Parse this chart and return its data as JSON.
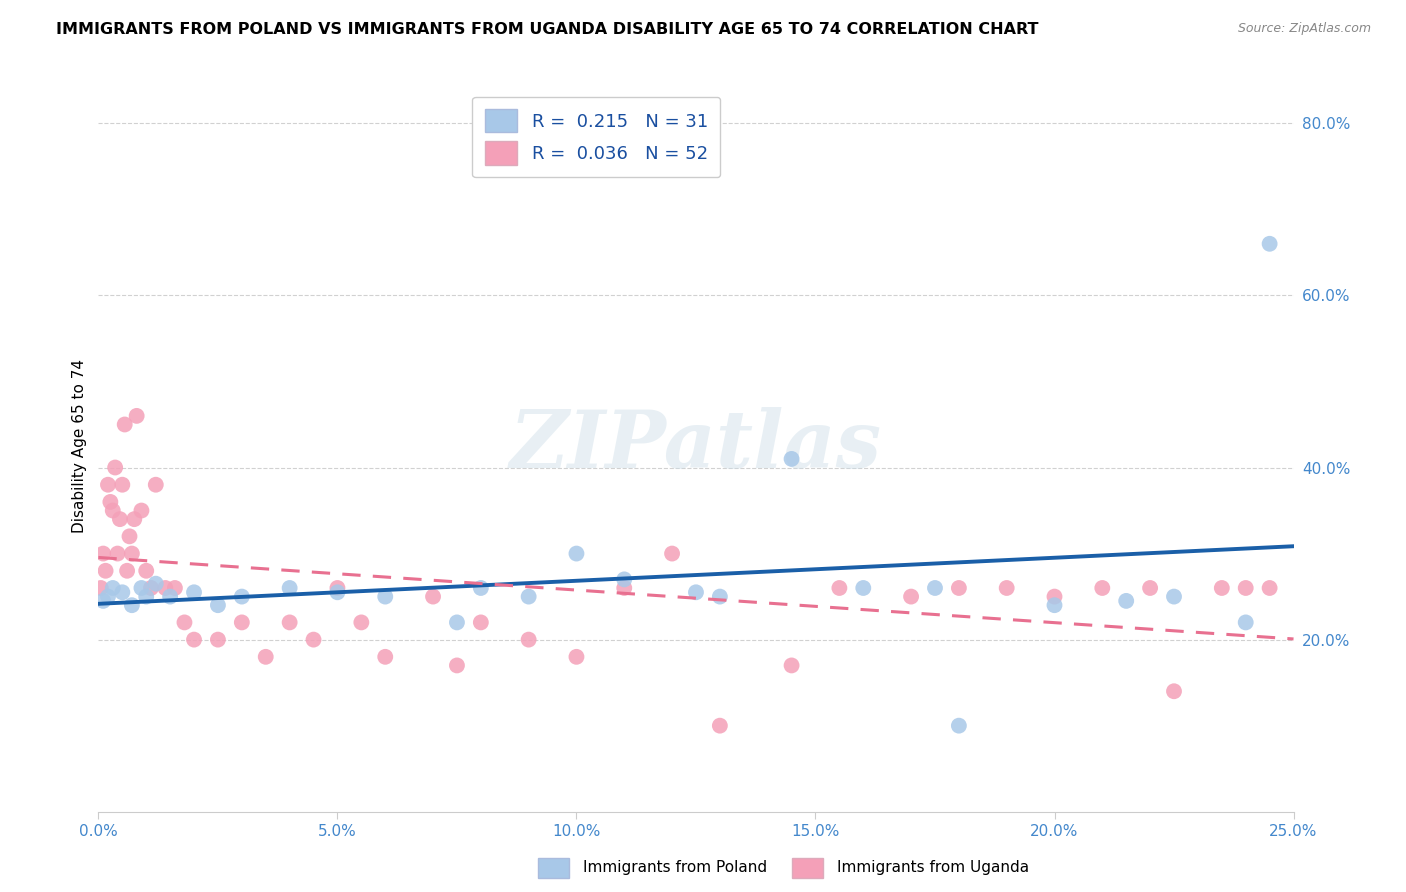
{
  "title": "IMMIGRANTS FROM POLAND VS IMMIGRANTS FROM UGANDA DISABILITY AGE 65 TO 74 CORRELATION CHART",
  "source": "Source: ZipAtlas.com",
  "ylabel": "Disability Age 65 to 74",
  "poland_R": 0.215,
  "poland_N": 31,
  "uganda_R": 0.036,
  "uganda_N": 52,
  "poland_color": "#a8c8e8",
  "uganda_color": "#f4a0b8",
  "poland_line_color": "#1a5fa8",
  "uganda_line_color": "#e87090",
  "legend_label_poland": "Immigrants from Poland",
  "legend_label_uganda": "Immigrants from Uganda",
  "poland_x": [
    0.1,
    0.2,
    0.3,
    0.5,
    0.7,
    0.9,
    1.0,
    1.2,
    1.5,
    2.0,
    2.5,
    3.0,
    4.0,
    5.0,
    6.0,
    7.5,
    8.0,
    9.0,
    10.0,
    11.0,
    12.5,
    13.0,
    14.5,
    16.0,
    17.5,
    18.0,
    20.0,
    21.5,
    22.5,
    24.0,
    24.5
  ],
  "poland_y": [
    24.5,
    25.0,
    26.0,
    25.5,
    24.0,
    26.0,
    25.0,
    26.5,
    25.0,
    25.5,
    24.0,
    25.0,
    26.0,
    25.5,
    25.0,
    22.0,
    26.0,
    25.0,
    30.0,
    27.0,
    25.5,
    25.0,
    41.0,
    26.0,
    26.0,
    10.0,
    24.0,
    24.5,
    25.0,
    22.0,
    66.0
  ],
  "uganda_x": [
    0.05,
    0.1,
    0.15,
    0.2,
    0.25,
    0.3,
    0.35,
    0.4,
    0.45,
    0.5,
    0.55,
    0.6,
    0.65,
    0.7,
    0.75,
    0.8,
    0.9,
    1.0,
    1.1,
    1.2,
    1.4,
    1.6,
    1.8,
    2.0,
    2.5,
    3.0,
    3.5,
    4.0,
    4.5,
    5.0,
    5.5,
    6.0,
    7.0,
    7.5,
    8.0,
    9.0,
    10.0,
    11.0,
    12.0,
    13.0,
    14.5,
    15.5,
    17.0,
    18.0,
    19.0,
    20.0,
    21.0,
    22.0,
    22.5,
    23.5,
    24.0,
    24.5
  ],
  "uganda_y": [
    26.0,
    30.0,
    28.0,
    38.0,
    36.0,
    35.0,
    40.0,
    30.0,
    34.0,
    38.0,
    45.0,
    28.0,
    32.0,
    30.0,
    34.0,
    46.0,
    35.0,
    28.0,
    26.0,
    38.0,
    26.0,
    26.0,
    22.0,
    20.0,
    20.0,
    22.0,
    18.0,
    22.0,
    20.0,
    26.0,
    22.0,
    18.0,
    25.0,
    17.0,
    22.0,
    20.0,
    18.0,
    26.0,
    30.0,
    10.0,
    17.0,
    26.0,
    25.0,
    26.0,
    26.0,
    25.0,
    26.0,
    26.0,
    14.0,
    26.0,
    26.0,
    26.0
  ],
  "xlim": [
    0.0,
    25.0
  ],
  "ylim": [
    0.0,
    85.0
  ],
  "xlabel_vals": [
    0.0,
    5.0,
    10.0,
    15.0,
    20.0,
    25.0
  ],
  "ylabel_vals": [
    20.0,
    40.0,
    60.0,
    80.0
  ],
  "watermark_text": "ZIPatlas",
  "background_color": "#ffffff",
  "grid_color": "#cccccc"
}
